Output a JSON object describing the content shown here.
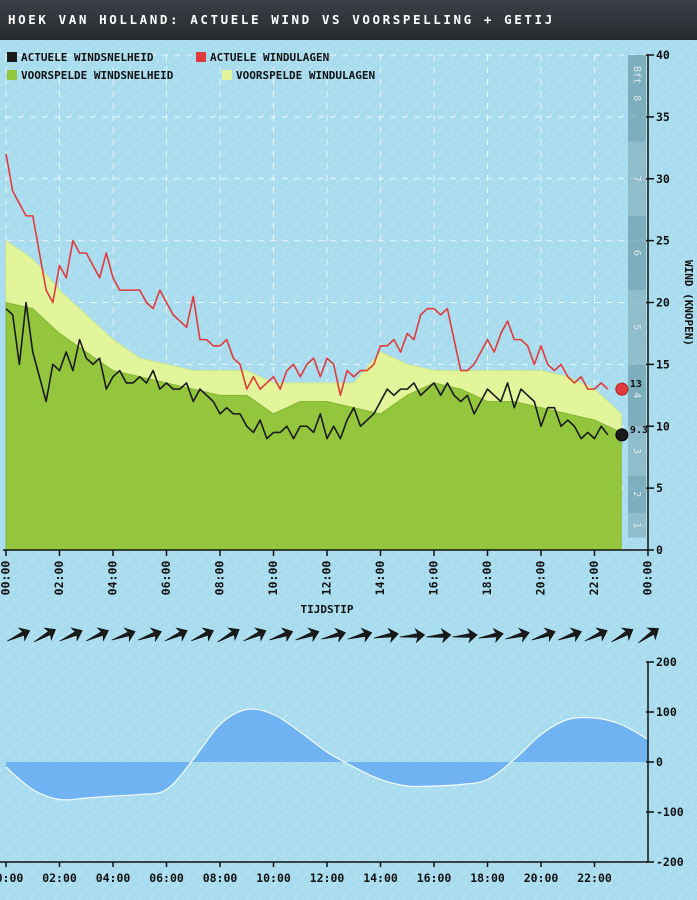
{
  "title": "Hoek van Holland: actuele wind vs voorspelling + getij",
  "colors": {
    "background": "#a8dcee",
    "actual_wind": "#1a1a1a",
    "actual_gusts": "#e03b3b",
    "forecast_wind": "#93c63c",
    "forecast_gusts": "#e3f59a",
    "tide": "#6fb3f2",
    "bft_band_dark": "#5f8f9e",
    "bft_band_light": "#7fa9b6"
  },
  "legend": {
    "actual_wind": "Actuele windsnelheid",
    "actual_gusts": "Actuele windulagen",
    "forecast_wind": "Voorspelde windsnelheid",
    "forecast_gusts": "Voorspelde windulagen"
  },
  "chart_data": [
    {
      "type": "line",
      "xlabel": "Tijdstip",
      "ylabel": "Wind (knopen)",
      "xlim": [
        0,
        24
      ],
      "ylim": [
        0,
        40
      ],
      "x_ticks": [
        "00:00",
        "02:00",
        "04:00",
        "06:00",
        "08:00",
        "10:00",
        "12:00",
        "14:00",
        "16:00",
        "18:00",
        "20:00",
        "22:00",
        "00:00"
      ],
      "y_ticks": [
        0,
        5,
        10,
        15,
        20,
        25,
        30,
        35,
        40
      ],
      "y_tick_labels": [
        "0",
        "5",
        "10",
        "15",
        "20",
        "25",
        "30",
        "35",
        "40"
      ],
      "grid": true,
      "legend_position": "top-left",
      "bft_scale": {
        "unit_label": "Bft",
        "bands": [
          {
            "label": "1",
            "from": 1,
            "to": 3
          },
          {
            "label": "2",
            "from": 3,
            "to": 6
          },
          {
            "label": "3",
            "from": 6,
            "to": 10
          },
          {
            "label": "4",
            "from": 10,
            "to": 15
          },
          {
            "label": "5",
            "from": 15,
            "to": 21
          },
          {
            "label": "6",
            "from": 21,
            "to": 27
          },
          {
            "label": "7",
            "from": 27,
            "to": 33
          },
          {
            "label": "8",
            "from": 33,
            "to": 40
          }
        ]
      },
      "series": [
        {
          "name": "Voorspelde windulagen",
          "style": "area",
          "x": [
            0,
            1,
            2,
            3,
            4,
            5,
            6,
            7,
            8,
            9,
            10,
            11,
            12,
            13,
            14,
            15,
            16,
            17,
            18,
            19,
            20,
            21,
            22,
            23
          ],
          "y": [
            25,
            23.5,
            21,
            19,
            17,
            15.5,
            15,
            14.5,
            14.5,
            14.5,
            13.5,
            13.5,
            13.5,
            13.5,
            16,
            15,
            14.5,
            14.5,
            14.5,
            14.5,
            14.5,
            14,
            13,
            11
          ]
        },
        {
          "name": "Voorspelde windsnelheid",
          "style": "area",
          "x": [
            0,
            1,
            2,
            3,
            4,
            5,
            6,
            7,
            8,
            9,
            10,
            11,
            12,
            13,
            14,
            15,
            16,
            17,
            18,
            19,
            20,
            21,
            22,
            23
          ],
          "y": [
            20,
            19.5,
            17.5,
            16,
            14.5,
            14,
            13.5,
            13,
            12.5,
            12.5,
            11,
            12,
            12,
            11.5,
            11,
            12.5,
            13.5,
            13,
            12,
            12,
            11.5,
            11,
            10.5,
            9.5
          ]
        },
        {
          "name": "Actuele windulagen",
          "style": "line",
          "x": [
            0,
            0.25,
            0.5,
            0.75,
            1,
            1.25,
            1.5,
            1.75,
            2,
            2.25,
            2.5,
            2.75,
            3,
            3.25,
            3.5,
            3.75,
            4,
            4.25,
            4.5,
            4.75,
            5,
            5.25,
            5.5,
            5.75,
            6,
            6.25,
            6.5,
            6.75,
            7,
            7.25,
            7.5,
            7.75,
            8,
            8.25,
            8.5,
            8.75,
            9,
            9.25,
            9.5,
            9.75,
            10,
            10.25,
            10.5,
            10.75,
            11,
            11.25,
            11.5,
            11.75,
            12,
            12.25,
            12.5,
            12.75,
            13,
            13.25,
            13.5,
            13.75,
            14,
            14.25,
            14.5,
            14.75,
            15,
            15.25,
            15.5,
            15.75,
            16,
            16.25,
            16.5,
            16.75,
            17,
            17.25,
            17.5,
            17.75,
            18,
            18.25,
            18.5,
            18.75,
            19,
            19.25,
            19.5,
            19.75,
            20,
            20.25,
            20.5,
            20.75,
            21,
            21.25,
            21.5,
            21.75,
            22,
            22.25,
            22.5
          ],
          "y": [
            32,
            29,
            28,
            27,
            27,
            24,
            21,
            20,
            23,
            22,
            25,
            24,
            24,
            23,
            22,
            24,
            22,
            21,
            21,
            21,
            21,
            20,
            19.5,
            21,
            20,
            19,
            18.5,
            18,
            20.5,
            17,
            17,
            16.5,
            16.5,
            17,
            15.5,
            15,
            13,
            14,
            13,
            13.5,
            14,
            13,
            14.5,
            15,
            14,
            15,
            15.5,
            14,
            15.5,
            15,
            12.5,
            14.5,
            14,
            14.5,
            14.5,
            15,
            16.5,
            16.5,
            17,
            16,
            17.5,
            17,
            19,
            19.5,
            19.5,
            19,
            19.5,
            17,
            14.5,
            14.5,
            15,
            16,
            17,
            16,
            17.5,
            18.5,
            17,
            17,
            16.5,
            15,
            16.5,
            15,
            14.5,
            15,
            14,
            13.5,
            14,
            13,
            13,
            13.5,
            13
          ]
        },
        {
          "name": "Actuele windsnelheid",
          "style": "line",
          "x": [
            0,
            0.25,
            0.5,
            0.75,
            1,
            1.25,
            1.5,
            1.75,
            2,
            2.25,
            2.5,
            2.75,
            3,
            3.25,
            3.5,
            3.75,
            4,
            4.25,
            4.5,
            4.75,
            5,
            5.25,
            5.5,
            5.75,
            6,
            6.25,
            6.5,
            6.75,
            7,
            7.25,
            7.5,
            7.75,
            8,
            8.25,
            8.5,
            8.75,
            9,
            9.25,
            9.5,
            9.75,
            10,
            10.25,
            10.5,
            10.75,
            11,
            11.25,
            11.5,
            11.75,
            12,
            12.25,
            12.5,
            12.75,
            13,
            13.25,
            13.5,
            13.75,
            14,
            14.25,
            14.5,
            14.75,
            15,
            15.25,
            15.5,
            15.75,
            16,
            16.25,
            16.5,
            16.75,
            17,
            17.25,
            17.5,
            17.75,
            18,
            18.25,
            18.5,
            18.75,
            19,
            19.25,
            19.5,
            19.75,
            20,
            20.25,
            20.5,
            20.75,
            21,
            21.25,
            21.5,
            21.75,
            22,
            22.25,
            22.5
          ],
          "y": [
            19.5,
            19,
            15,
            20,
            16,
            14,
            12,
            15,
            14.5,
            16,
            14.5,
            17,
            15.5,
            15,
            15.5,
            13,
            14,
            14.5,
            13.5,
            13.5,
            14,
            13.5,
            14.5,
            13,
            13.5,
            13,
            13,
            13.5,
            12,
            13,
            12.5,
            12,
            11,
            11.5,
            11,
            11,
            10,
            9.5,
            10.5,
            9,
            9.5,
            9.5,
            10,
            9,
            10,
            10,
            9.5,
            11,
            9,
            10,
            9,
            10.5,
            11.5,
            10,
            10.5,
            11,
            12,
            13,
            12.5,
            13,
            13,
            13.5,
            12.5,
            13,
            13.5,
            12.5,
            13.5,
            12.5,
            12,
            12.5,
            11,
            12,
            13,
            12.5,
            12,
            13.5,
            11.5,
            13,
            12.5,
            12,
            10,
            11.5,
            11.5,
            10,
            10.5,
            10,
            9,
            9.5,
            9,
            10,
            9.3
          ]
        }
      ],
      "end_labels": [
        {
          "series": "Actuele windulagen",
          "x": 22.5,
          "y": 13,
          "text": "13"
        },
        {
          "series": "Actuele windsnelheid",
          "x": 22.5,
          "y": 9.3,
          "text": "9.3"
        }
      ]
    },
    {
      "type": "area",
      "xlim": [
        0,
        24
      ],
      "ylim": [
        -200,
        200
      ],
      "x_ticks": [
        "00:00",
        "02:00",
        "04:00",
        "06:00",
        "08:00",
        "10:00",
        "12:00",
        "14:00",
        "16:00",
        "18:00",
        "20:00",
        "22:00"
      ],
      "y_ticks": [
        -200,
        -100,
        0,
        100,
        200
      ],
      "y_tick_labels": [
        "-200",
        "-100",
        "0",
        "100",
        "200"
      ],
      "grid": false,
      "series": [
        {
          "style": "area",
          "x": [
            0,
            1,
            2,
            3,
            4,
            5,
            6,
            7,
            8,
            9,
            10,
            11,
            12,
            13,
            14,
            15,
            16,
            17,
            18,
            19,
            20,
            21,
            22,
            23,
            24
          ],
          "y": [
            -10,
            -55,
            -75,
            -72,
            -68,
            -65,
            -55,
            5,
            75,
            105,
            95,
            60,
            20,
            -10,
            -35,
            -48,
            -48,
            -45,
            -35,
            5,
            55,
            85,
            88,
            75,
            45
          ]
        }
      ]
    }
  ],
  "wind_directions_deg": [
    245,
    240,
    245,
    245,
    250,
    250,
    245,
    245,
    240,
    245,
    250,
    250,
    255,
    255,
    260,
    265,
    265,
    265,
    260,
    255,
    250,
    250,
    245,
    240,
    235
  ]
}
